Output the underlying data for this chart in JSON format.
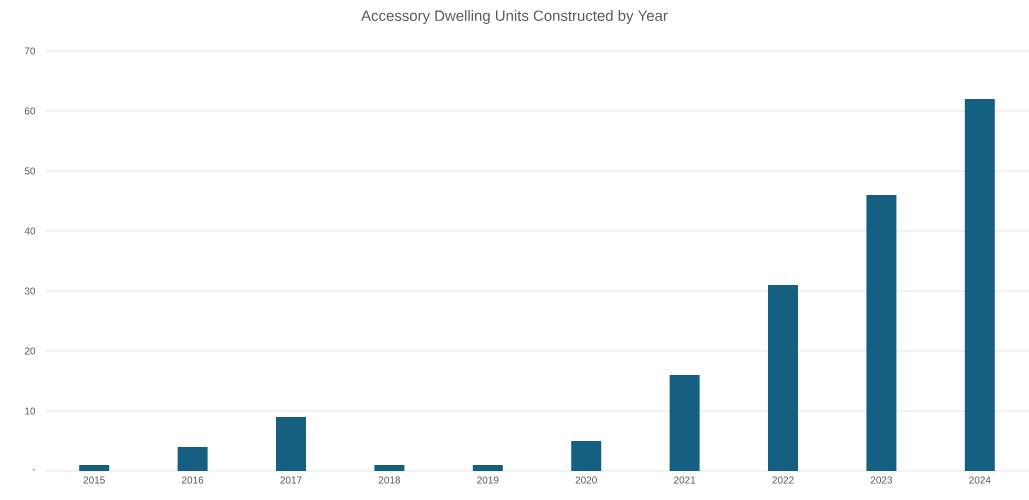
{
  "chart_data": {
    "type": "bar",
    "title": "Accessory Dwelling Units Constructed by Year",
    "categories": [
      "2015",
      "2016",
      "2017",
      "2018",
      "2019",
      "2020",
      "2021",
      "2022",
      "2023",
      "2024"
    ],
    "values": [
      1,
      4,
      9,
      1,
      1,
      5,
      16,
      31,
      46,
      62
    ],
    "color": "#156082",
    "ylim": [
      0,
      70
    ],
    "yticks": [
      {
        "value": 0,
        "label": "-"
      },
      10,
      20,
      30,
      40,
      50,
      60,
      70
    ],
    "grid": "y"
  }
}
